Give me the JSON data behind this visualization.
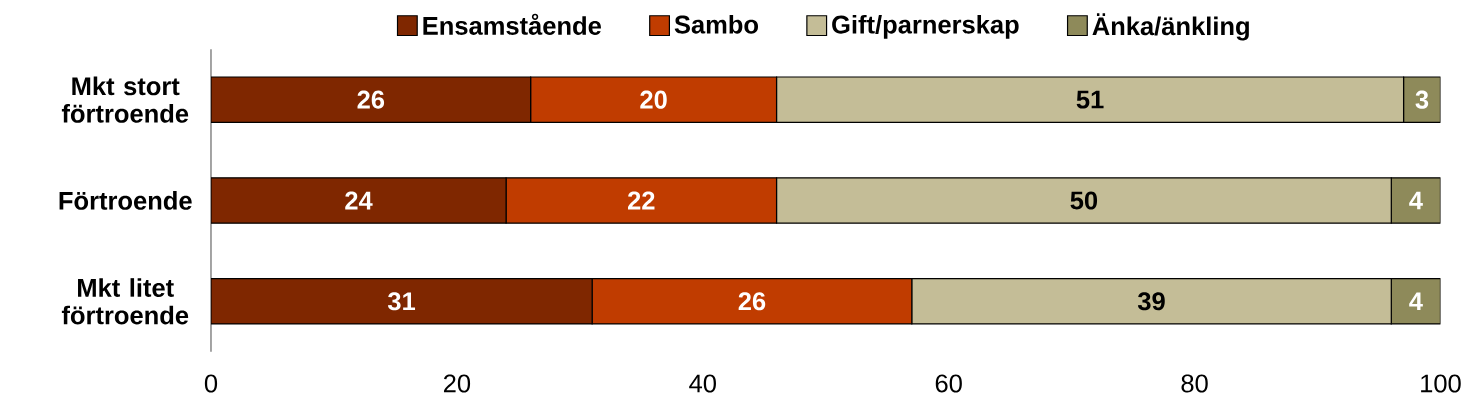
{
  "chart_data": {
    "type": "bar",
    "orientation": "horizontal",
    "stacked": true,
    "categories": [
      "Mkt stort förtroende",
      "Förtroende",
      "Mkt litet förtroende"
    ],
    "series": [
      {
        "name": "Ensamstående",
        "color": "#7f2700",
        "values": [
          26,
          24,
          31
        ]
      },
      {
        "name": "Sambo",
        "color": "#c03c00",
        "values": [
          20,
          22,
          26
        ]
      },
      {
        "name": "Gift/parnerskap",
        "color": "#c4bd97",
        "values": [
          51,
          50,
          39
        ]
      },
      {
        "name": "Änka/änkling",
        "color": "#8e8a5a",
        "values": [
          3,
          4,
          4
        ]
      }
    ],
    "xlim": [
      0,
      100
    ],
    "xticks": [
      0,
      20,
      40,
      60,
      80,
      100
    ],
    "data_labels": true,
    "legend": "top",
    "grid": false
  }
}
